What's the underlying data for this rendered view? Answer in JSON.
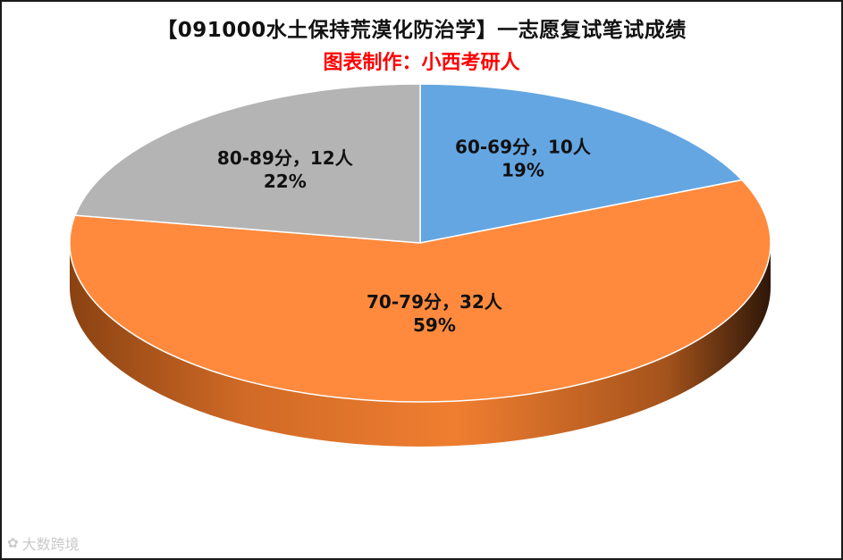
{
  "chart_data": {
    "type": "pie",
    "title": "【091000水土保持荒漠化防治学】一志愿复试笔试成绩",
    "subtitle": "图表制作：小西考研人",
    "slices": [
      {
        "category": "60-69分",
        "count": 10,
        "count_label": "10人",
        "percent_label": "19%",
        "color": "#64a6e2"
      },
      {
        "category": "70-79分",
        "count": 32,
        "count_label": "32人",
        "percent_label": "59%",
        "color": "#ff8a3d"
      },
      {
        "category": "80-89分",
        "count": 12,
        "count_label": "12人",
        "percent_label": "22%",
        "color": "#b4b4b4"
      }
    ],
    "start_angle_deg": 0,
    "direction": "clockwise",
    "style": "3d",
    "legend": "none"
  },
  "watermark": {
    "icon": "weibo-icon",
    "text": "大数跨境"
  }
}
